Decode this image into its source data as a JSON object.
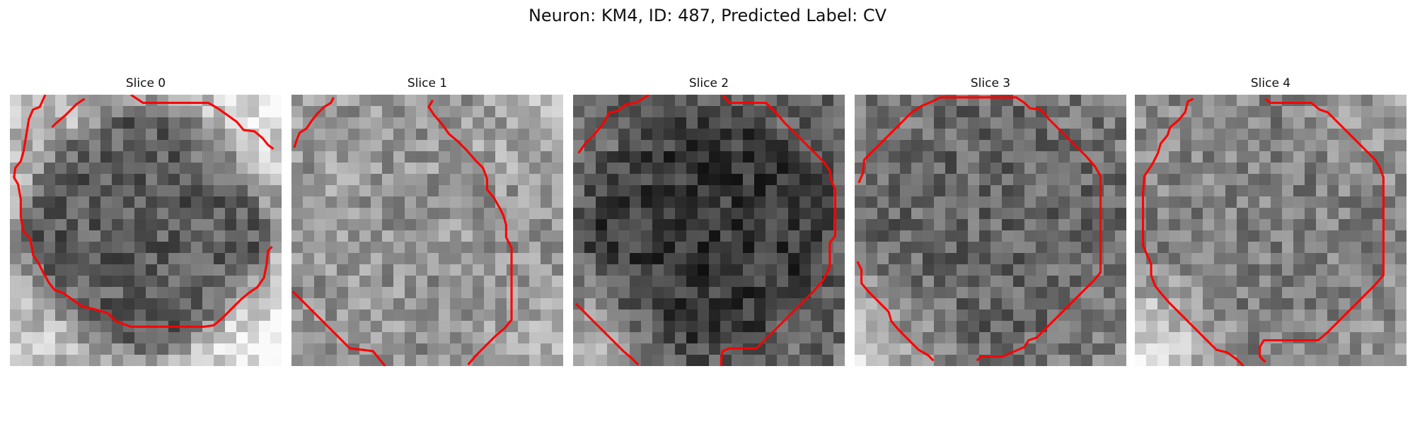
{
  "figure": {
    "title": "Neuron: KM4, ID: 487, Predicted Label: CV",
    "contour_color": "#ff0000",
    "panels": [
      {
        "title": "Slice 0",
        "brightness": {
          "background": 0.62,
          "center": 0.36,
          "corner_boost": [
            0.15,
            0.35,
            0.2,
            0.4
          ]
        },
        "contours": [
          "M2.6,0 L2.2,0.9 L1.7,1.1 L1.4,1.8 L1.2,3.0 L1.0,4.2 L0.8,4.9 L0.4,5.4 L0.3,6.1 L0.6,6.6 L0.8,7.7 L0.8,9.0 L1.0,10.1 L1.5,10.6 L1.7,11.8 L2.1,12.4 L2.5,13.2 L2.9,13.9 L3.3,14.4 L3.9,14.6 L4.6,15.1 L5.3,15.6 L6.2,15.8 L7.2,16.1 L7.8,16.7 L8.9,17.1 L10.2,17.1 L11.8,17.1 L13.1,17.1 L14.3,17.1 L15.0,17.0 L15.6,16.5 L16.3,15.8 L17.0,15.1 L17.6,14.6 L18.2,14.2 L18.7,13.5 L18.9,12.5 L19.0,11.5 L19.3,11.2",
          "M8.9,0 L9.8,0.6 L11.1,0.6 L12.3,0.6 L13.6,0.6 L14.6,0.6 L15.3,1.0 L16.0,1.5 L16.7,2.0 L17.2,2.6 L18.0,2.7 L18.6,3.2 L19.0,3.7 L19.4,4.0",
          "M5.5,0.3 L4.9,0.7 L4.1,1.5 L3.4,2.1 L3.1,2.4"
        ]
      },
      {
        "title": "Slice 1",
        "brightness": {
          "background": 0.55,
          "center": 0.58,
          "corner_boost": [
            0.1,
            0.2,
            0.05,
            0.15
          ]
        },
        "contours": [
          "M3.1,0.2 L2.9,0.6 L2.4,0.9 L1.9,1.4 L1.5,1.9 L1.1,2.5 L0.6,2.8 L0.4,3.3 L0.2,3.9",
          "M10.4,0.4 L10.1,0.9 L10.5,1.5 L11.1,2.2 L11.6,2.9 L12.2,3.4 L12.9,4.1 L13.6,4.9 L14.1,5.4 L14.4,6.2 L14.4,7.0 L14.9,7.6 L15.3,8.3 L15.6,8.9 L15.8,9.6 L15.8,10.5 L16.2,11.3 L16.2,12.2 L16.2,13.3 L16.2,14.4 L16.2,15.5 L16.2,16.6 L15.7,17.2 L15.0,17.8 L14.3,18.5 L13.6,19.2 L13.0,19.9",
          "M0.1,14.5 L0.8,15.2 L1.5,15.9 L2.2,16.6 L2.9,17.3 L3.6,18.0 L4.3,18.7 L5.2,18.8 L6.0,18.9 L6.4,19.4 L6.9,20.0"
        ]
      },
      {
        "title": "Slice 2",
        "brightness": {
          "background": 0.34,
          "center": 0.22,
          "corner_boost": [
            0.1,
            0.05,
            0.45,
            0.1
          ]
        },
        "contours": [
          "M0.4,4.3 L0.9,3.6 L1.5,3.0 L2.1,2.3 L2.7,1.3 L3.3,1.2 L3.9,0.7 L4.6,0.6 L5.1,0.3 L5.6,0",
          "M11.0,0 L11.5,0.6 L12.4,0.6 L13.3,0.6 L14.2,0.6 L14.9,1.3 L15.6,2.1 L16.3,2.8 L17.0,3.5 L17.7,4.2 L18.4,4.9 L18.9,5.6 L19.0,6.3 L19.3,7.0 L19.3,7.9 L19.3,8.8 L19.3,9.6 L19.3,10.4 L18.9,10.9 L18.9,11.8 L18.9,12.7 L18.4,13.7 L17.7,14.5 L17.0,15.2 L16.3,15.9 L15.6,16.6 L14.9,17.3 L14.2,18.0 L13.5,18.7 L12.5,18.7 L11.5,18.7 L11.0,18.9 L10.9,19.5 L10.9,20.0",
          "M0.2,15.4 L0.9,16.1 L1.6,16.8 L2.3,17.5 L3.0,18.2 L3.7,18.9 L4.4,19.5 L4.8,19.9"
        ]
      },
      {
        "title": "Slice 3",
        "brightness": {
          "background": 0.42,
          "center": 0.4,
          "corner_boost": [
            0.05,
            0.05,
            0.4,
            0.1
          ]
        },
        "contours": [
          "M0.3,6.5 L0.6,5.8 L0.7,4.8 L1.4,4.1 L2.1,3.4 L2.8,2.7 L3.5,2.0 L4.2,1.3 L5.0,0.8 L5.7,0.5 L6.3,0.2 L7.4,0.2 L8.6,0.2 L9.7,0.2 L10.8,0.2 L11.9,0.2 L12.5,0.6 L12.9,1.0 L13.7,1.1 L14.3,1.8 L15.0,2.5 L15.7,3.2 L16.4,3.9 L17.1,4.6 L17.7,5.3 L18.1,6.0 L18.1,7.2 L18.1,8.4 L18.1,9.6 L18.1,10.8 L18.1,12.0 L18.1,13.1 L17.6,13.7 L16.9,14.4 L16.2,15.1 L15.5,15.8 L14.8,16.5 L14.1,17.2 L13.4,17.9 L12.8,18.1 L12.5,18.6 L11.8,18.9 L10.9,19.3 L10.1,19.3 L9.3,19.3 L9.0,19.6",
          "M0.2,12.3 L0.5,12.9 L0.5,13.9 L1.1,14.6 L1.8,15.3 L2.5,16.0 L2.7,16.7 L3.3,17.4 L4.0,18.1 L4.7,18.8 L5.4,19.2 L5.8,19.6"
        ]
      },
      {
        "title": "Slice 4",
        "brightness": {
          "background": 0.52,
          "center": 0.5,
          "corner_boost": [
            0.05,
            0.1,
            0.4,
            0.05
          ]
        },
        "contours": [
          "M4.3,0.3 L3.9,0.5 L3.7,1.3 L3.2,1.9 L2.6,2.4 L2.4,3.0 L1.9,3.6 L1.7,4.3 L1.3,5.1 L0.7,6.0 L0.6,7.3 L0.6,8.6 L0.6,9.8 L0.6,11.1 L0.9,11.8 L1.2,12.5 L1.2,13.3 L1.5,14.1 L1.9,14.6 L2.5,15.3 L3.2,16.0 L3.9,16.7 L4.6,17.4 L5.3,18.1 L6.0,18.8 L6.8,19.0 L7.5,19.5 L8.0,20.0",
          "M9.6,0.3 L10.0,0.6 L11.1,0.6 L12.2,0.6 L13.0,0.6 L13.6,1.1 L14.2,1.3 L14.9,2.0 L15.6,2.7 L16.3,3.4 L17.0,4.1 L17.7,4.8 L18.0,5.3 L18.3,6.1 L18.3,7.3 L18.3,8.5 L18.3,9.7 L18.3,10.9 L18.3,12.1 L18.3,13.3 L17.7,14.0 L17.0,14.7 L16.3,15.4 L15.6,16.1 L14.9,16.8 L14.2,17.5 L13.5,18.1 L12.5,18.1 L11.5,18.1 L10.5,18.1 L9.5,18.1 L9.2,18.6 L9.2,19.3 L9.6,19.7"
        ]
      }
    ]
  }
}
